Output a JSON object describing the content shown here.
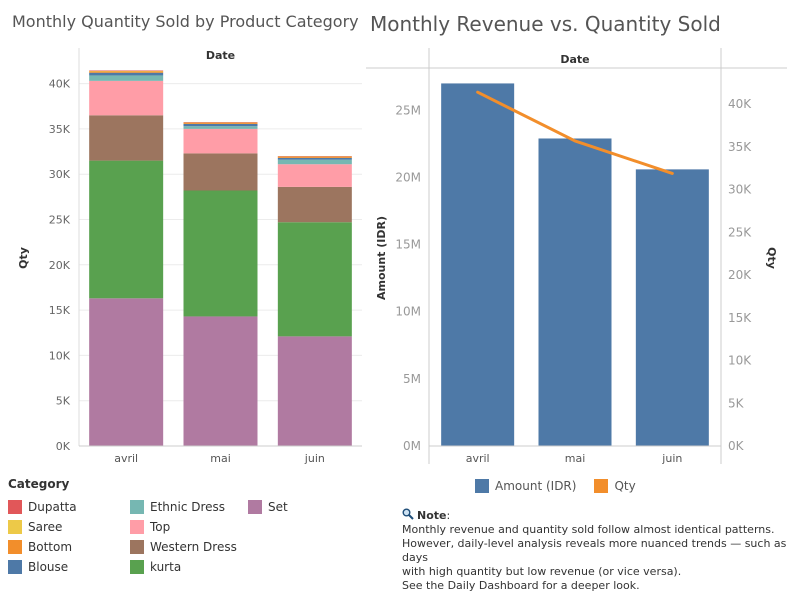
{
  "colors": {
    "Dupatta": "#e15759",
    "Saree": "#edc948",
    "Bottom": "#f28e2b",
    "Blouse": "#4e79a7",
    "Ethnic Dress": "#76b7b2",
    "Top": "#ff9da7",
    "Western Dress": "#9c755f",
    "kurta": "#59a14f",
    "Set": "#b07aa1",
    "amount": "#4e79a7",
    "qty": "#f28e2b"
  },
  "chart_data": [
    {
      "type": "bar",
      "stacked": true,
      "title": "Monthly Quantity Sold by Product Category",
      "column_header": "Date",
      "xlabel": "",
      "ylabel": "Qty",
      "ylim": [
        0,
        41500
      ],
      "yticks": [
        0,
        5000,
        10000,
        15000,
        20000,
        25000,
        30000,
        35000,
        40000
      ],
      "ytick_labels": [
        "0K",
        "5K",
        "10K",
        "15K",
        "20K",
        "25K",
        "30K",
        "35K",
        "40K"
      ],
      "categories": [
        "avril",
        "mai",
        "juin"
      ],
      "legend_title": "Category",
      "legend_order": [
        "Dupatta",
        "Saree",
        "Bottom",
        "Blouse",
        "Ethnic Dress",
        "Top",
        "Western Dress",
        "kurta",
        "Set"
      ],
      "series": [
        {
          "name": "Set",
          "values": [
            16300,
            14300,
            12100
          ]
        },
        {
          "name": "kurta",
          "values": [
            15200,
            13900,
            12600
          ]
        },
        {
          "name": "Western Dress",
          "values": [
            5000,
            4100,
            3900
          ]
        },
        {
          "name": "Top",
          "values": [
            3800,
            2700,
            2500
          ]
        },
        {
          "name": "Ethnic Dress",
          "values": [
            600,
            300,
            500
          ]
        },
        {
          "name": "Blouse",
          "values": [
            300,
            250,
            200
          ]
        },
        {
          "name": "Bottom",
          "values": [
            150,
            100,
            100
          ]
        },
        {
          "name": "Saree",
          "values": [
            50,
            50,
            50
          ]
        },
        {
          "name": "Dupatta",
          "values": [
            50,
            50,
            50
          ]
        }
      ]
    },
    {
      "type": "bar+line",
      "title": "Monthly Revenue vs. Quantity Sold",
      "column_header": "Date",
      "categories": [
        "avril",
        "mai",
        "juin"
      ],
      "ylabel_left": "Amount (IDR)",
      "ylim_left": [
        0,
        28000000
      ],
      "yticks_left": [
        0,
        5000000,
        10000000,
        15000000,
        20000000,
        25000000
      ],
      "ytick_labels_left": [
        "0M",
        "5M",
        "10M",
        "15M",
        "20M",
        "25M"
      ],
      "ylabel_right": "Qty",
      "ylim_right": [
        0,
        44000
      ],
      "yticks_right": [
        0,
        5000,
        10000,
        15000,
        20000,
        25000,
        30000,
        35000,
        40000
      ],
      "ytick_labels_right": [
        "0K",
        "5K",
        "10K",
        "15K",
        "20K",
        "25K",
        "30K",
        "35K",
        "40K"
      ],
      "series": [
        {
          "name": "Amount (IDR)",
          "type": "bar",
          "axis": "left",
          "values": [
            27000000,
            22900000,
            20600000
          ]
        },
        {
          "name": "Qty",
          "type": "line",
          "axis": "right",
          "values": [
            41400,
            35700,
            31900
          ]
        }
      ]
    }
  ],
  "note": {
    "heading": "Note",
    "lines": [
      "Monthly revenue and quantity sold follow almost identical patterns.",
      "However, daily-level analysis reveals more nuanced trends — such as days",
      "with high quantity but low revenue (or vice versa).",
      "See the Daily Dashboard for a deeper look."
    ]
  }
}
